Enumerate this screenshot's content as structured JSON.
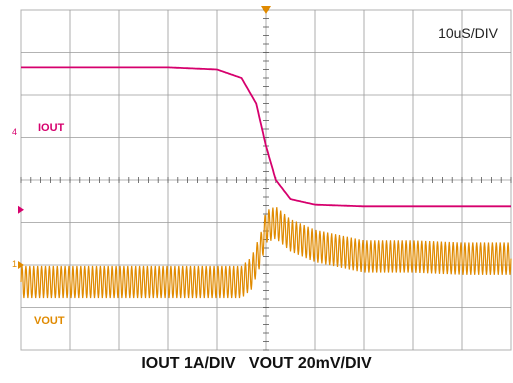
{
  "chart_data": {
    "type": "line",
    "timebase": "10uS/DIV",
    "caption": "IOUT 1A/DIV   VOUT 20mV/DIV",
    "grid": true,
    "divisions": {
      "x": 10,
      "y": 8
    },
    "xlim_div": [
      0,
      10
    ],
    "ylim_div": [
      -4,
      4
    ],
    "series": [
      {
        "name": "IOUT",
        "color": "#d6006d",
        "marker_label": "4",
        "marker_level_div": -0.7,
        "x_div": [
          0,
          1,
          2,
          3,
          4,
          4.5,
          4.8,
          5.0,
          5.2,
          5.5,
          6.0,
          7,
          8,
          9,
          10
        ],
        "y_div": [
          2.65,
          2.65,
          2.65,
          2.65,
          2.6,
          2.4,
          1.8,
          0.8,
          0.0,
          -0.45,
          -0.58,
          -0.62,
          -0.62,
          -0.62,
          -0.62
        ]
      },
      {
        "name": "VOUT",
        "color": "#e08a00",
        "marker_label": "1",
        "marker_level_div": -2.0,
        "x_div": [
          0,
          1,
          2,
          3,
          4,
          4.5,
          4.7,
          4.9,
          5.0,
          5.2,
          5.5,
          6.0,
          7,
          8,
          9,
          10
        ],
        "y_div": [
          -2.4,
          -2.4,
          -2.4,
          -2.4,
          -2.4,
          -2.4,
          -2.2,
          -1.6,
          -1.1,
          -1.0,
          -1.3,
          -1.55,
          -1.8,
          -1.8,
          -1.85,
          -1.85
        ],
        "ripple_div": 0.38
      }
    ],
    "trigger_position_div": 5.0
  }
}
